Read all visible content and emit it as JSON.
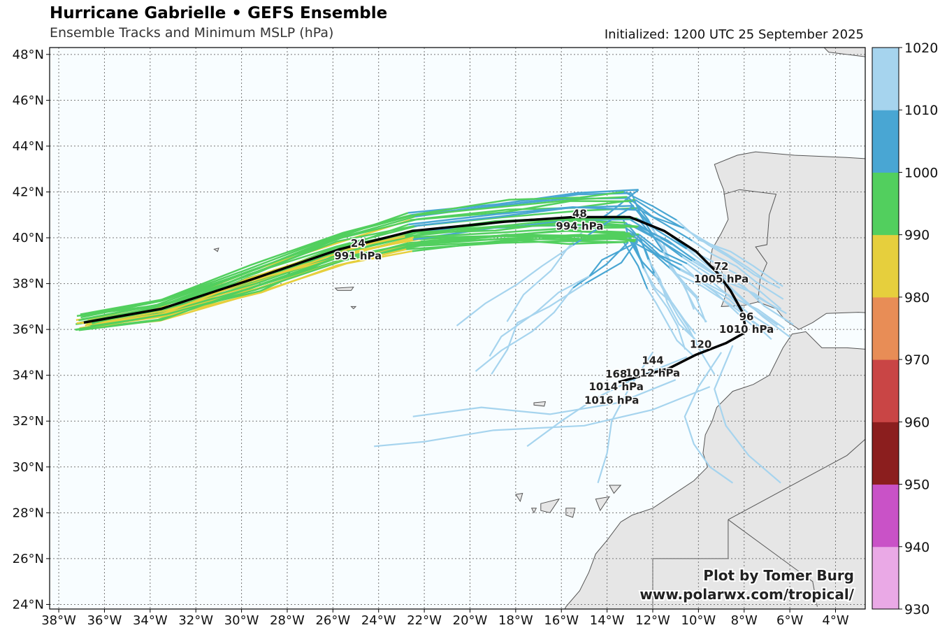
{
  "header": {
    "title": "Hurricane Gabrielle • GEFS Ensemble",
    "subtitle": "Ensemble Tracks and Minimum MSLP (hPa)",
    "initialized": "Initialized: 1200 UTC 25 September 2025"
  },
  "map": {
    "lon_range": [
      -38.4,
      -2.7
    ],
    "lat_range": [
      23.8,
      48.3
    ],
    "lon_ticks": [
      "38°W",
      "36°W",
      "34°W",
      "32°W",
      "30°W",
      "28°W",
      "26°W",
      "24°W",
      "22°W",
      "20°W",
      "18°W",
      "16°W",
      "14°W",
      "12°W",
      "10°W",
      "8°W",
      "6°W",
      "4°W"
    ],
    "lat_ticks": [
      "24°N",
      "26°N",
      "28°N",
      "30°N",
      "32°N",
      "34°N",
      "36°N",
      "38°N",
      "40°N",
      "42°N",
      "44°N",
      "46°N",
      "48°N"
    ],
    "ocean_color": "#f8fdff",
    "land_color": "#e6e6e6",
    "gridlines": "dotted"
  },
  "colorbar": {
    "ticks": [
      "930",
      "940",
      "950",
      "960",
      "970",
      "980",
      "990",
      "1000",
      "1010",
      "1020"
    ],
    "colors": [
      "#eaa9e6",
      "#c952c7",
      "#8b1e1e",
      "#c94545",
      "#e88d56",
      "#e6cf3d",
      "#52cf5e",
      "#49a6d3",
      "#a6d4ee"
    ]
  },
  "mean_track": {
    "color": "#000000",
    "points": [
      [
        -36.9,
        36.3
      ],
      [
        -33.5,
        36.9
      ],
      [
        -29.5,
        38.2
      ],
      [
        -25.7,
        39.5
      ],
      [
        -22.5,
        40.3
      ],
      [
        -18.5,
        40.7
      ],
      [
        -15.5,
        40.9
      ],
      [
        -13.0,
        40.9
      ],
      [
        -11.5,
        40.3
      ],
      [
        -10.1,
        39.4
      ],
      [
        -9.2,
        38.5
      ],
      [
        -8.6,
        37.7
      ],
      [
        -8.1,
        36.8
      ],
      [
        -7.9,
        35.9
      ],
      [
        -8.8,
        35.4
      ],
      [
        -10.1,
        34.9
      ],
      [
        -11.3,
        34.3
      ],
      [
        -12.4,
        34.0
      ],
      [
        -13.5,
        33.7
      ]
    ]
  },
  "labels": [
    {
      "hour": "24",
      "pressure": "991 hPa",
      "lon": -24.9,
      "lat": 39.6
    },
    {
      "hour": "48",
      "pressure": "994 hPa",
      "lon": -15.2,
      "lat": 40.9
    },
    {
      "hour": "72",
      "pressure": "1005 hPa",
      "lon": -9.0,
      "lat": 38.6
    },
    {
      "hour": "96",
      "pressure": "1010 hPa",
      "lon": -7.9,
      "lat": 36.4
    },
    {
      "hour": "120",
      "pressure": "",
      "lon": -9.9,
      "lat": 35.2
    },
    {
      "hour": "144",
      "pressure": "1012 hPa",
      "lon": -12.0,
      "lat": 34.5
    },
    {
      "hour": "168",
      "pressure": "1014 hPa",
      "lon": -13.6,
      "lat": 33.9
    },
    {
      "hour": "",
      "pressure": "1016 hPa",
      "lon": -13.8,
      "lat": 33.3
    }
  ],
  "credit": {
    "line1": "Plot by Tomer Burg",
    "line2": "www.polarwx.com/tropical/"
  }
}
